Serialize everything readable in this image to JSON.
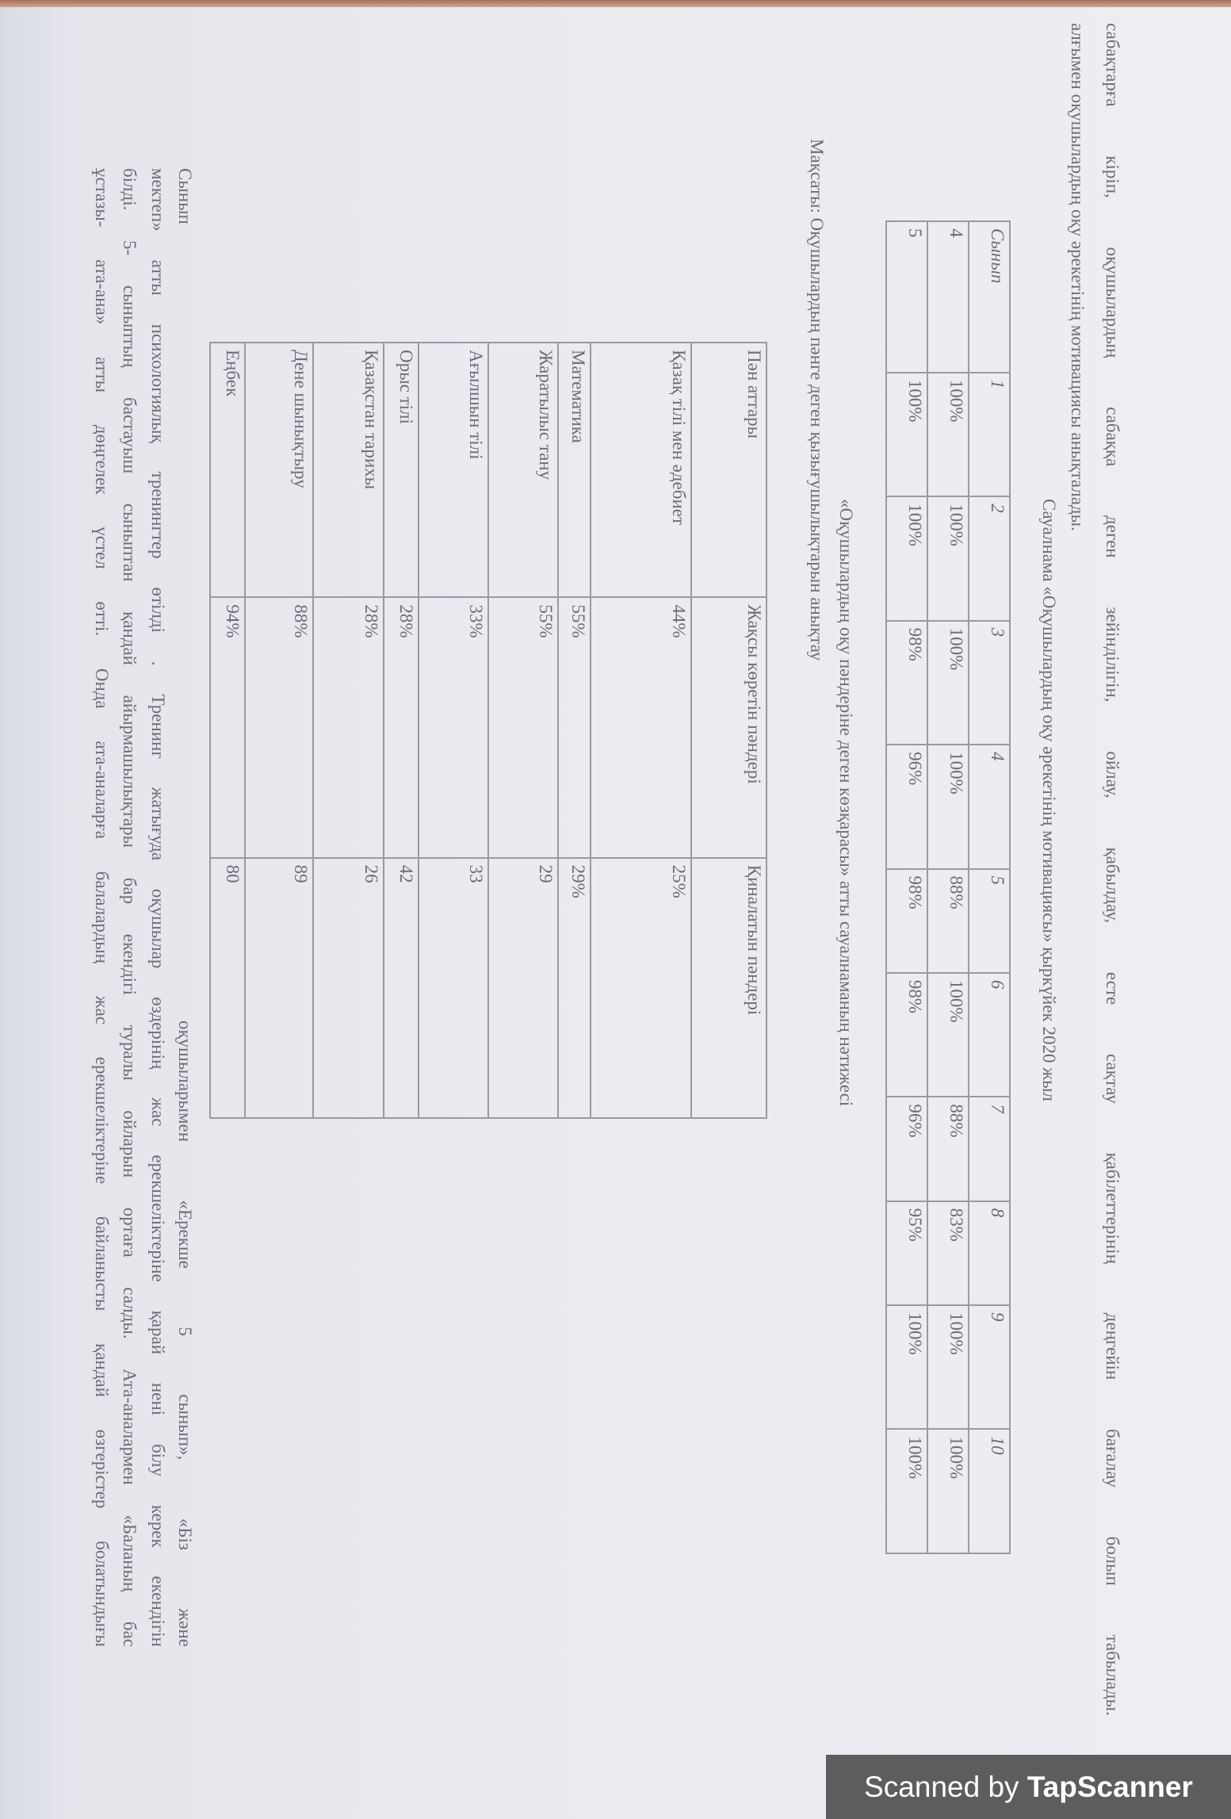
{
  "paragraph_top": [
    "сабақтарға кіріп, оқушылардың сабаққа деген зейінділігін, ойлау, қабылдау, есте сақтау қабілеттерінің деңгейін бағалау болып табылады.  Ең",
    "алғымен оқушылардың оқу әрекетінің мотивациясы анықталады."
  ],
  "survey1": {
    "title": "Сауалнама «Оқушылардың оқу әрекетінің мотивациясы»   қыркүйек 2020 жыл",
    "headers": [
      "Сынып",
      "1",
      "2",
      "3",
      "4",
      "5",
      "6",
      "7",
      "8",
      "9",
      "10"
    ],
    "rows": [
      [
        "4",
        "100%",
        "100%",
        "100%",
        "100%",
        "88%",
        "100%",
        "88%",
        "83%",
        "100%",
        "100%"
      ],
      [
        "5",
        "100%",
        "100%",
        "98%",
        "96%",
        "98%",
        "98%",
        "96%",
        "95%",
        "100%",
        "100%"
      ]
    ]
  },
  "survey2": {
    "title": "«Оқушылардың оқу пәндеріне деген көзқарасы» атты сауалнаманың нәтижесі",
    "goal": "Мақсаты: Оқушылардың пәнге деген қызығушылықтарын анықтау",
    "headers": [
      "Пән аттары",
      "Жақсы көретін пәндері",
      "Қиналатын пәндері"
    ],
    "rows": [
      [
        "Қазақ тілі мен әдебиет",
        "44%",
        "25%"
      ],
      [
        "Математика",
        "55%",
        "29%"
      ],
      [
        "Жаратылыс тану",
        "55%",
        "29"
      ],
      [
        "Ағылшын тілі",
        "33%",
        "33"
      ],
      [
        "Орыс тілі",
        "28%",
        "42"
      ],
      [
        "Қазақстан тарихы",
        "28%",
        "26"
      ],
      [
        "Дене шынықтыру",
        "88%",
        "89"
      ],
      [
        "Еңбек",
        "94%",
        "80"
      ]
    ]
  },
  "paragraph_bottom": {
    "label": "Сынып",
    "lines": [
      "оқушыларымен «Ерекше 5 сынып», «Біз және",
      "мектеп» атты психологиялық тренингтер өтілді . Тренинг жатығуда оқушылар өздерінің жас ерекшеліктеріне қарай нені білу керек екендігін",
      "білді. 5- сыныптың бастауыш сыныптан қандай айырмашылықтары бар екендігі туралы ойларын ортаға салды.  Ата-аналармен «Баланың бас",
      "ұстазы- ата-ана» атты дөңгелек үстел өтті. Онда ата-аналарға балалардың жас ерекшеліктеріне байланысты қандай өзгерістер болатындығы"
    ]
  },
  "watermark": {
    "prefix": "Scanned by ",
    "brand": "TapScanner"
  }
}
